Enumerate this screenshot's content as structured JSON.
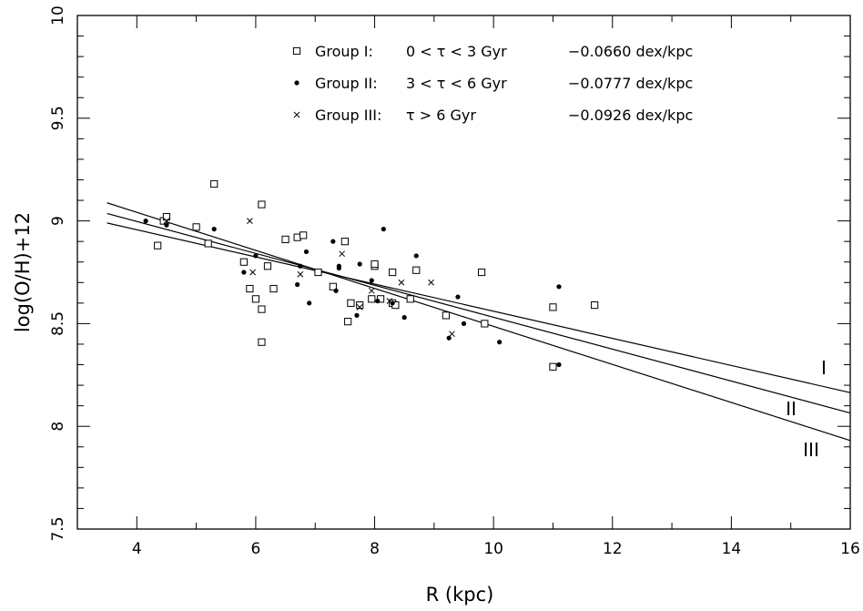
{
  "chart_data": {
    "type": "scatter",
    "title": "",
    "xlabel": "R (kpc)",
    "ylabel": "log(O/H)+12",
    "xlim": [
      3,
      16
    ],
    "ylim": [
      7.5,
      10
    ],
    "x_ticks": [
      4,
      6,
      8,
      10,
      12,
      14,
      16
    ],
    "y_ticks": [
      7.5,
      8,
      8.5,
      9,
      9.5,
      10
    ],
    "grid": false,
    "legend_position": "top-center",
    "series": [
      {
        "name": "Group I:",
        "condition": "0 < τ < 3 Gyr",
        "slope_label": "−0.0660 dex/kpc",
        "marker": "open-square",
        "points": [
          [
            4.35,
            8.88
          ],
          [
            4.45,
            9.0
          ],
          [
            4.5,
            9.02
          ],
          [
            5.0,
            8.97
          ],
          [
            5.2,
            8.89
          ],
          [
            5.3,
            9.18
          ],
          [
            5.8,
            8.8
          ],
          [
            5.9,
            8.67
          ],
          [
            6.0,
            8.62
          ],
          [
            6.1,
            8.41
          ],
          [
            6.1,
            8.57
          ],
          [
            6.1,
            9.08
          ],
          [
            6.2,
            8.78
          ],
          [
            6.3,
            8.67
          ],
          [
            6.5,
            8.91
          ],
          [
            6.7,
            8.92
          ],
          [
            6.8,
            8.93
          ],
          [
            7.05,
            8.75
          ],
          [
            7.3,
            8.68
          ],
          [
            7.5,
            8.9
          ],
          [
            7.55,
            8.51
          ],
          [
            7.6,
            8.6
          ],
          [
            7.75,
            8.59
          ],
          [
            7.95,
            8.62
          ],
          [
            8.0,
            8.78
          ],
          [
            8.0,
            8.79
          ],
          [
            8.1,
            8.62
          ],
          [
            8.3,
            8.75
          ],
          [
            8.3,
            8.6
          ],
          [
            8.35,
            8.59
          ],
          [
            8.6,
            8.62
          ],
          [
            8.7,
            8.76
          ],
          [
            9.2,
            8.54
          ],
          [
            9.8,
            8.75
          ],
          [
            9.85,
            8.5
          ],
          [
            11.0,
            8.58
          ],
          [
            11.0,
            8.29
          ],
          [
            11.7,
            8.59
          ]
        ],
        "fit_line": [
          [
            3.5,
            8.99
          ],
          [
            16,
            8.164
          ]
        ]
      },
      {
        "name": "Group II:",
        "condition": "3 < τ < 6 Gyr",
        "slope_label": "−0.0777 dex/kpc",
        "marker": "filled-circle",
        "points": [
          [
            4.15,
            9.0
          ],
          [
            4.5,
            8.98
          ],
          [
            5.3,
            8.96
          ],
          [
            5.8,
            8.75
          ],
          [
            6.0,
            8.83
          ],
          [
            6.75,
            8.78
          ],
          [
            6.7,
            8.69
          ],
          [
            6.85,
            8.85
          ],
          [
            6.9,
            8.6
          ],
          [
            7.3,
            8.9
          ],
          [
            7.35,
            8.66
          ],
          [
            7.4,
            8.78
          ],
          [
            7.4,
            8.77
          ],
          [
            7.7,
            8.54
          ],
          [
            7.75,
            8.79
          ],
          [
            7.95,
            8.71
          ],
          [
            8.05,
            8.61
          ],
          [
            8.15,
            8.96
          ],
          [
            8.3,
            8.6
          ],
          [
            8.5,
            8.53
          ],
          [
            8.7,
            8.83
          ],
          [
            9.25,
            8.43
          ],
          [
            9.4,
            8.63
          ],
          [
            9.5,
            8.5
          ],
          [
            10.1,
            8.41
          ],
          [
            11.1,
            8.68
          ],
          [
            11.1,
            8.3
          ]
        ],
        "fit_line": [
          [
            3.5,
            9.036
          ],
          [
            16,
            8.065
          ]
        ]
      },
      {
        "name": "Group III:",
        "condition": "τ > 6 Gyr",
        "slope_label": "−0.0926 dex/kpc",
        "marker": "cross",
        "points": [
          [
            4.5,
            9.0
          ],
          [
            5.9,
            9.0
          ],
          [
            5.95,
            8.75
          ],
          [
            6.75,
            8.74
          ],
          [
            7.45,
            8.84
          ],
          [
            7.75,
            8.58
          ],
          [
            7.95,
            8.66
          ],
          [
            8.25,
            8.61
          ],
          [
            8.45,
            8.7
          ],
          [
            8.95,
            8.7
          ],
          [
            9.3,
            8.45
          ]
        ],
        "fit_line": [
          [
            3.5,
            9.088
          ],
          [
            16,
            7.931
          ]
        ]
      }
    ],
    "line_labels": [
      "I",
      "II",
      "III"
    ]
  }
}
